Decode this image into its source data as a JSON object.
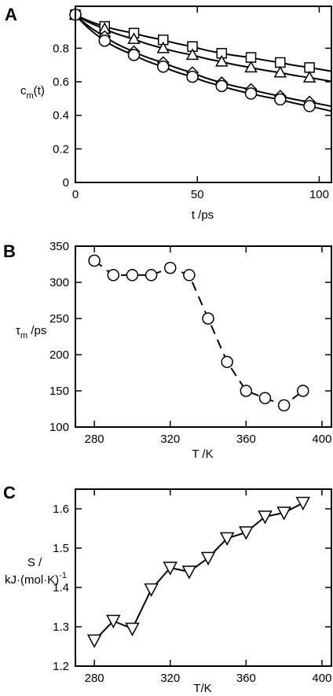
{
  "chart_data": [
    {
      "panel_label": "A",
      "type": "line",
      "xlabel": "t /ps",
      "ylabel": "c",
      "ylabel_sub": "m",
      "ylabel_suffix": "(t)",
      "xlim": [
        0,
        105
      ],
      "ylim": [
        0,
        1.05
      ],
      "xticks": [
        0,
        50,
        100
      ],
      "yticks": [
        0,
        0.2,
        0.4,
        0.6,
        0.8
      ],
      "grid": false,
      "series": [
        {
          "marker": "square",
          "x": [
            0,
            12,
            24,
            36,
            48,
            60,
            72,
            84,
            96
          ],
          "y": [
            1.0,
            0.93,
            0.89,
            0.85,
            0.81,
            0.77,
            0.745,
            0.715,
            0.685
          ]
        },
        {
          "marker": "triangle",
          "x": [
            0,
            12,
            24,
            36,
            48,
            60,
            72,
            84,
            96
          ],
          "y": [
            1.0,
            0.915,
            0.855,
            0.8,
            0.76,
            0.72,
            0.685,
            0.655,
            0.625
          ]
        },
        {
          "marker": "diamond",
          "x": [
            0,
            12,
            24,
            36,
            48,
            60,
            72,
            84,
            96
          ],
          "y": [
            1.0,
            0.87,
            0.78,
            0.715,
            0.655,
            0.595,
            0.555,
            0.515,
            0.48
          ]
        },
        {
          "marker": "circle",
          "x": [
            0,
            12,
            24,
            36,
            48,
            60,
            72,
            84,
            96
          ],
          "y": [
            1.0,
            0.845,
            0.76,
            0.69,
            0.63,
            0.575,
            0.53,
            0.495,
            0.455
          ]
        }
      ]
    },
    {
      "panel_label": "B",
      "type": "line",
      "line_style": "dashed",
      "xlabel": "T /K",
      "ylabel": "τ",
      "ylabel_sub": "m",
      "ylabel_suffix": " /ps",
      "xlim": [
        270,
        405
      ],
      "ylim": [
        100,
        350
      ],
      "xticks": [
        280,
        320,
        360,
        400
      ],
      "yticks": [
        100,
        150,
        200,
        250,
        300,
        350
      ],
      "grid": false,
      "series": [
        {
          "marker": "circle",
          "x": [
            280,
            290,
            300,
            310,
            320,
            330,
            340,
            350,
            360,
            370,
            380,
            390
          ],
          "y": [
            330,
            310,
            310,
            310,
            320,
            310,
            250,
            190,
            150,
            140,
            130,
            150
          ]
        }
      ]
    },
    {
      "panel_label": "C",
      "type": "line",
      "xlabel": "T/K",
      "ylabel_line1": "S /",
      "ylabel_line2": "kJ·(mol·K)",
      "ylabel_sup": "-1",
      "xlim": [
        270,
        405
      ],
      "ylim": [
        1.2,
        1.65
      ],
      "xticks": [
        280,
        320,
        360,
        400
      ],
      "yticks": [
        1.2,
        1.3,
        1.4,
        1.5,
        1.6
      ],
      "grid": false,
      "series": [
        {
          "marker": "triangle-down",
          "x": [
            280,
            290,
            300,
            310,
            320,
            330,
            340,
            350,
            360,
            370,
            380,
            390
          ],
          "y": [
            1.265,
            1.315,
            1.295,
            1.395,
            1.45,
            1.44,
            1.475,
            1.525,
            1.54,
            1.58,
            1.59,
            1.615
          ]
        }
      ]
    }
  ]
}
